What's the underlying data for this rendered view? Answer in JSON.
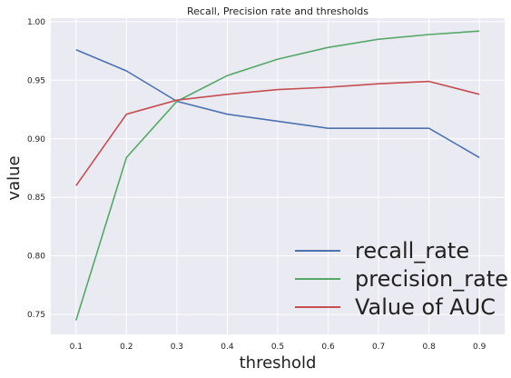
{
  "chart_data": {
    "type": "line",
    "title": "Recall, Precision rate and thresholds",
    "xlabel": "threshold",
    "ylabel": "value",
    "x": [
      0.1,
      0.2,
      0.3,
      0.4,
      0.5,
      0.6,
      0.7,
      0.8,
      0.9
    ],
    "x_ticks": [
      "0.1",
      "0.2",
      "0.3",
      "0.4",
      "0.5",
      "0.6",
      "0.7",
      "0.8",
      "0.9"
    ],
    "y_ticks": [
      "0.75",
      "0.80",
      "0.85",
      "0.90",
      "0.95",
      "1.00"
    ],
    "xlim": [
      0.05,
      0.95
    ],
    "ylim": [
      0.733,
      1.003
    ],
    "grid": true,
    "legend_position": "bottom-right",
    "series": [
      {
        "name": "recall_rate",
        "color": "#4c72b0",
        "values": [
          0.976,
          0.958,
          0.932,
          0.921,
          0.915,
          0.909,
          0.909,
          0.909,
          0.884
        ]
      },
      {
        "name": "precision_rate",
        "color": "#55a868",
        "values": [
          0.745,
          0.884,
          0.932,
          0.954,
          0.968,
          0.978,
          0.985,
          0.989,
          0.992
        ]
      },
      {
        "name": "Value of AUC",
        "color": "#c44e52",
        "values": [
          0.86,
          0.921,
          0.933,
          0.938,
          0.942,
          0.944,
          0.947,
          0.949,
          0.938
        ]
      }
    ]
  }
}
